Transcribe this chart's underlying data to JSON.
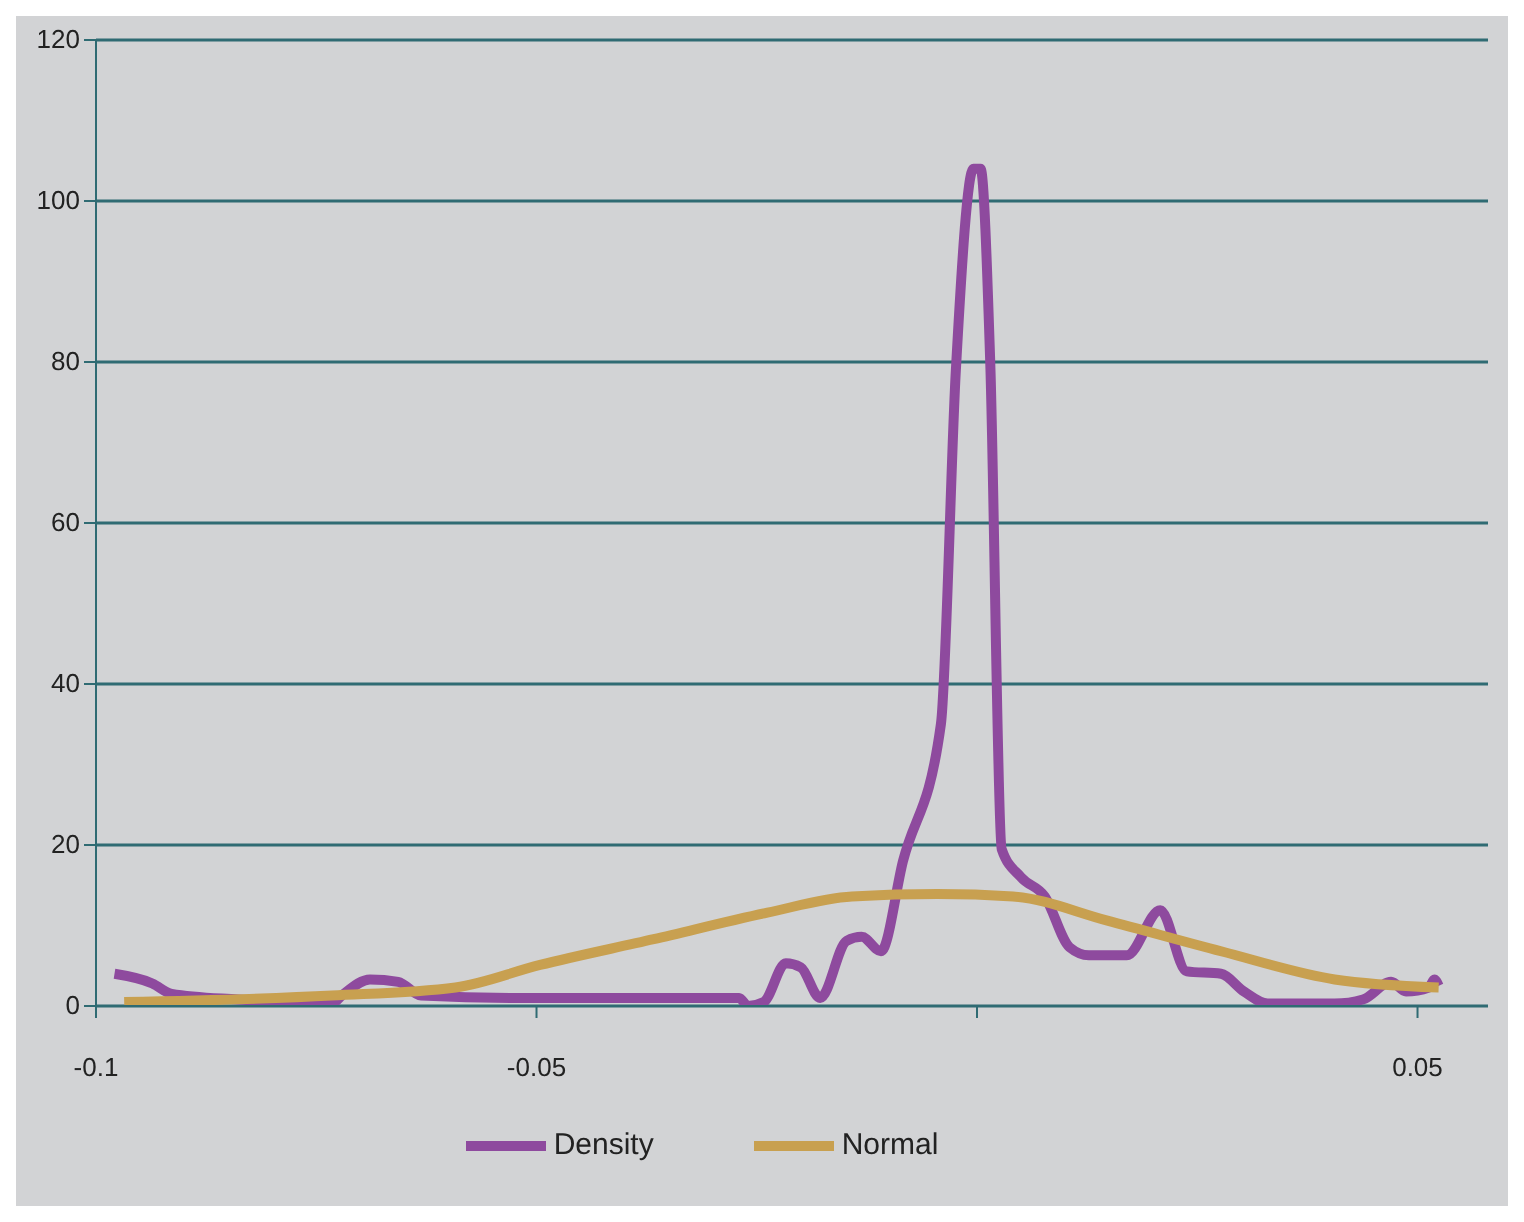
{
  "chart_data": {
    "type": "line",
    "xlim": [
      -0.1,
      0.058
    ],
    "xticks": [
      -0.1,
      -0.05,
      {
        "value": 0,
        "label": null
      },
      0.05
    ],
    "ylim": [
      0,
      120
    ],
    "yticks": [
      0,
      20,
      40,
      60,
      80,
      100,
      120
    ],
    "grid": "y",
    "legend": "bottom",
    "marker": "none",
    "line_style": "solid",
    "series": [
      {
        "name": "Density",
        "color": "#8e4a9e",
        "x": [
          -0.0979,
          -0.0936,
          -0.0914,
          -0.0839,
          -0.0732,
          -0.0721,
          -0.0689,
          -0.0657,
          -0.0631,
          -0.0517,
          -0.027,
          -0.026,
          -0.0242,
          -0.0217,
          -0.02,
          -0.0178,
          -0.0148,
          -0.0131,
          -0.0109,
          -0.0084,
          -0.0041,
          -0.0024,
          -0.0004,
          0.0004,
          0.0015,
          0.0028,
          0.005,
          0.0077,
          0.0105,
          0.0127,
          0.017,
          0.0208,
          0.0238,
          0.0277,
          0.0303,
          0.033,
          0.0406,
          0.0438,
          0.047,
          0.0487,
          0.0513,
          0.0519,
          0.0524
        ],
        "values": [
          4,
          2.8,
          1.5,
          0.8,
          0.3,
          1.3,
          3.3,
          3,
          1.3,
          1,
          1,
          0,
          0.5,
          5.3,
          4.8,
          1,
          8.1,
          8.6,
          6.8,
          18,
          35,
          79,
          104,
          104,
          80,
          19.5,
          16,
          13.6,
          7.3,
          6.3,
          6.3,
          11.9,
          4.3,
          4,
          1.8,
          0.3,
          0.3,
          0.8,
          3,
          1.8,
          2.3,
          3.3,
          2.5
        ]
      },
      {
        "name": "Normal",
        "color": "#c8a050",
        "x": [
          -0.0968,
          -0.0732,
          -0.0592,
          -0.0496,
          -0.0367,
          -0.0238,
          -0.0142,
          -0.0045,
          0.0041,
          0.0148,
          0.0277,
          0.0406,
          0.0524
        ],
        "values": [
          0.5,
          1.3,
          2.3,
          5.1,
          8.3,
          11.6,
          13.6,
          13.9,
          13.6,
          10.6,
          6.8,
          3.3,
          2.3
        ]
      }
    ]
  }
}
